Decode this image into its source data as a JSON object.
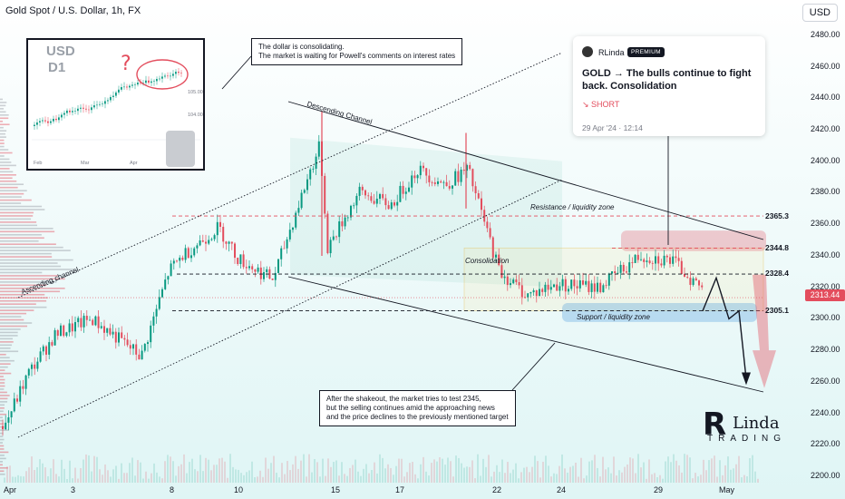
{
  "header": {
    "symbol_title": "Gold Spot / U.S. Dollar, 1h, FX",
    "currency_button": "USD"
  },
  "idea_card": {
    "author": "RLinda",
    "badge": "PREMIUM",
    "headline": "GOLD → The bulls continue to fight back. Consolidation",
    "direction": "SHORT",
    "date": "29 Apr '24 · 12:14"
  },
  "inset": {
    "label_currency": "USD",
    "label_timeframe": "D1",
    "question_mark": "?",
    "tick_a": "105.00",
    "tick_b": "104.00",
    "months": [
      "Feb",
      "Mar",
      "Apr"
    ]
  },
  "annotations": {
    "dollar_note_line1": "The dollar is consolidating.",
    "dollar_note_line2": "The market is waiting for Powell's comments on interest rates",
    "shakeout_line1": "After the shakeout, the market tries to test 2345,",
    "shakeout_line2": "but the selling continues amid the approaching news",
    "shakeout_line3": "and the price declines to the previously mentioned target",
    "descending_channel": "Descending Channel",
    "ascending_channel": "Ascending channel",
    "resistance_zone": "Resistance / liquidity zone",
    "consolidation": "Consolidation",
    "support_zone": "Support / liquidity zone"
  },
  "logo": {
    "r": "R",
    "linda": "Linda",
    "trading": "TRADING"
  },
  "chart_data": {
    "type": "candlestick",
    "title": "Gold Spot / U.S. Dollar, 1h, FX",
    "y_axis": {
      "ticks": [
        2200,
        2220,
        2240,
        2260,
        2280,
        2300,
        2320,
        2340,
        2360,
        2380,
        2400,
        2420,
        2440,
        2460,
        2480
      ],
      "ylim": [
        2196,
        2492
      ]
    },
    "x_axis": {
      "ticks": [
        "Apr",
        "3",
        "8",
        "10",
        "15",
        "17",
        "22",
        "24",
        "29",
        "May"
      ]
    },
    "horizontal_levels": [
      {
        "label": "2365.3",
        "value": 2365.3,
        "style": "dashed",
        "color": "#e34d5d"
      },
      {
        "label": "2344.8",
        "value": 2344.8,
        "style": "dashed",
        "color": "#e34d5d"
      },
      {
        "label": "2328.4",
        "value": 2328.4,
        "style": "dashed",
        "color": "#131722"
      },
      {
        "label": "2305.1",
        "value": 2305.1,
        "style": "dashed",
        "color": "#131722"
      }
    ],
    "current_price": {
      "label": "2313.44",
      "value": 2313.44
    },
    "path_close": [
      [
        "Apr",
        2232
      ],
      [
        "Apr",
        2265
      ],
      [
        "3",
        2290
      ],
      [
        "3",
        2300
      ],
      [
        "3",
        2285
      ],
      [
        "3",
        2276
      ],
      [
        "8",
        2330
      ],
      [
        "8",
        2340
      ],
      [
        "10",
        2358
      ],
      [
        "10",
        2338
      ],
      [
        "10",
        2325
      ],
      [
        "15",
        2392
      ],
      [
        "15",
        2410
      ],
      [
        "15",
        2345
      ],
      [
        "17",
        2380
      ],
      [
        "17",
        2372
      ],
      [
        "17",
        2395
      ],
      [
        "17",
        2385
      ],
      [
        "22",
        2395
      ],
      [
        "22",
        2330
      ],
      [
        "22",
        2315
      ],
      [
        "24",
        2322
      ],
      [
        "24",
        2320
      ],
      [
        "29",
        2340
      ],
      [
        "29",
        2337
      ],
      [
        "29",
        2318
      ]
    ],
    "forecast_path": [
      2305,
      2326,
      2300,
      2305,
      2262
    ],
    "colors": {
      "up": "#089981",
      "down": "#e34d5d",
      "levels": "#e34d5d"
    }
  }
}
